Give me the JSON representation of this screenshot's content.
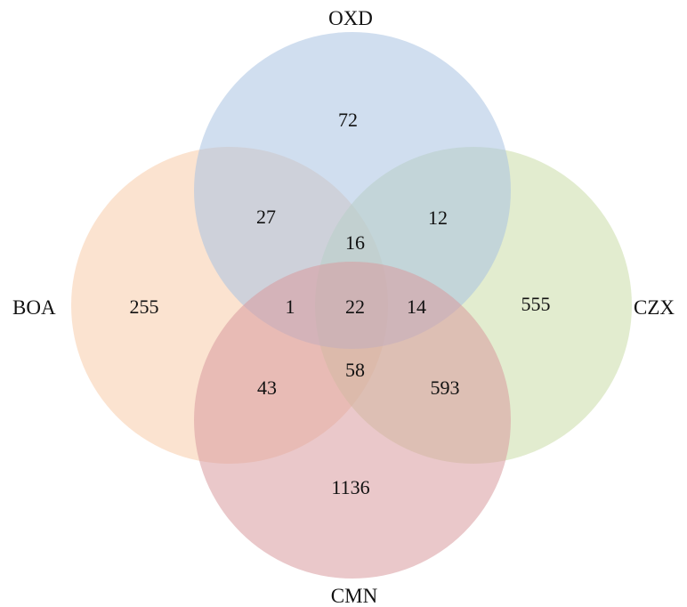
{
  "sets": [
    {
      "key": "oxd",
      "label": "OXD",
      "color": "#a9c3e2"
    },
    {
      "key": "boa",
      "label": "BOA",
      "color": "#f8ccaa"
    },
    {
      "key": "czx",
      "label": "CZX",
      "color": "#cbdca8"
    },
    {
      "key": "cmn",
      "label": "CMN",
      "color": "#d89a9f"
    }
  ],
  "regions": {
    "oxd_only": "72",
    "boa_oxd": "27",
    "oxd_czx": "12",
    "boa_oxd_czx": "16",
    "boa_only": "255",
    "boa_oxd_cmn": "1",
    "all_four": "22",
    "oxd_czx_cmn": "14",
    "czx_only": "555",
    "boa_cmn": "43",
    "boa_czx_cmn": "58",
    "czx_cmn": "593",
    "cmn_only": "1136"
  }
}
